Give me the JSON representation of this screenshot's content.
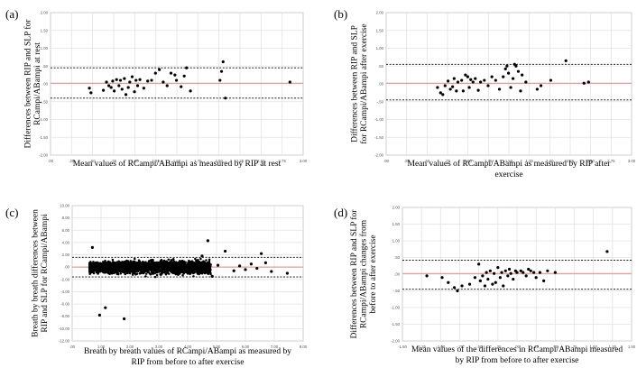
{
  "chart_data": [
    {
      "type": "scatter",
      "panel_label": "(a)",
      "title": "",
      "ylabel": [
        "Differences between RIP and SLP for",
        "RCampi/ABampi at rest"
      ],
      "xlabel": [
        "Mean values of RCampi/ABampi as measured by RIP at rest"
      ],
      "xlim": [
        0,
        3.25
      ],
      "ylim": [
        -2.0,
        2.0
      ],
      "x_ticks": [
        ".00",
        ".25",
        ".50",
        ".75",
        "1.00",
        "1.25",
        "1.50",
        "1.75",
        "2.00",
        "2.25",
        "2.50",
        "2.75",
        "3.00"
      ],
      "y_ticks": [
        "2.00",
        "1.50",
        "1.00",
        ".50",
        ".00",
        "-.50",
        "-1.00",
        "-1.50",
        "-2.00"
      ],
      "mean_line": 0.02,
      "limits_of_agreement": [
        0.45,
        -0.4
      ],
      "grid": true,
      "points": [
        [
          0.5,
          -0.12
        ],
        [
          0.52,
          -0.25
        ],
        [
          0.68,
          -0.18
        ],
        [
          0.72,
          0.05
        ],
        [
          0.75,
          -0.05
        ],
        [
          0.78,
          -0.1
        ],
        [
          0.8,
          0.08
        ],
        [
          0.82,
          -0.2
        ],
        [
          0.85,
          0.12
        ],
        [
          0.88,
          -0.05
        ],
        [
          0.9,
          0.1
        ],
        [
          0.92,
          -0.15
        ],
        [
          0.95,
          0.15
        ],
        [
          0.97,
          -0.3
        ],
        [
          1.0,
          -0.1
        ],
        [
          1.02,
          0.05
        ],
        [
          1.05,
          0.2
        ],
        [
          1.08,
          -0.22
        ],
        [
          1.1,
          0.1
        ],
        [
          1.12,
          -0.05
        ],
        [
          1.15,
          0.12
        ],
        [
          1.2,
          -0.12
        ],
        [
          1.25,
          0.08
        ],
        [
          1.3,
          0.1
        ],
        [
          1.35,
          0.3
        ],
        [
          1.4,
          0.4
        ],
        [
          1.45,
          0.05
        ],
        [
          1.5,
          -0.05
        ],
        [
          1.55,
          0.3
        ],
        [
          1.6,
          0.25
        ],
        [
          1.62,
          0.1
        ],
        [
          1.68,
          -0.08
        ],
        [
          1.72,
          0.22
        ],
        [
          1.75,
          0.45
        ],
        [
          1.8,
          -0.2
        ],
        [
          2.18,
          0.1
        ],
        [
          2.2,
          0.35
        ],
        [
          2.22,
          0.62
        ],
        [
          2.25,
          -0.4
        ],
        [
          3.08,
          0.05
        ]
      ]
    },
    {
      "type": "scatter",
      "panel_label": "(b)",
      "title": "",
      "ylabel": [
        "Differences between RIP and SLP",
        "for RCampi/ABampi after exercise"
      ],
      "xlabel": [
        "Mean values of RCampi/ABampi as measured by RIP after",
        "exercise"
      ],
      "xlim": [
        0,
        3.25
      ],
      "ylim": [
        -2.0,
        2.0
      ],
      "x_ticks": [
        ".00",
        ".25",
        ".50",
        ".75",
        "1.00",
        "1.25",
        "1.50",
        "1.75",
        "2.00",
        "2.25",
        "2.50",
        "2.75",
        "3.00"
      ],
      "y_ticks": [
        "2.00",
        "1.50",
        "1.00",
        ".50",
        ".00",
        "-.50",
        "-1.00",
        "-1.50",
        "-2.00"
      ],
      "mean_line": 0.02,
      "limits_of_agreement": [
        0.55,
        -0.45
      ],
      "grid": true,
      "points": [
        [
          0.68,
          -0.1
        ],
        [
          0.72,
          -0.25
        ],
        [
          0.75,
          -0.3
        ],
        [
          0.78,
          -0.05
        ],
        [
          0.82,
          0.08
        ],
        [
          0.85,
          -0.15
        ],
        [
          0.88,
          -0.08
        ],
        [
          0.9,
          0.15
        ],
        [
          0.93,
          -0.2
        ],
        [
          0.95,
          0.05
        ],
        [
          1.0,
          0.1
        ],
        [
          1.02,
          -0.2
        ],
        [
          1.05,
          0.25
        ],
        [
          1.08,
          0.2
        ],
        [
          1.1,
          -0.1
        ],
        [
          1.12,
          0.12
        ],
        [
          1.15,
          0.05
        ],
        [
          1.18,
          0.15
        ],
        [
          1.22,
          -0.18
        ],
        [
          1.25,
          0.05
        ],
        [
          1.3,
          0.1
        ],
        [
          1.35,
          -0.05
        ],
        [
          1.4,
          0.2
        ],
        [
          1.45,
          0.1
        ],
        [
          1.5,
          -0.15
        ],
        [
          1.55,
          0.2
        ],
        [
          1.58,
          0.42
        ],
        [
          1.6,
          0.5
        ],
        [
          1.62,
          0.3
        ],
        [
          1.65,
          -0.1
        ],
        [
          1.68,
          0.15
        ],
        [
          1.7,
          0.55
        ],
        [
          1.72,
          0.5
        ],
        [
          1.75,
          0.35
        ],
        [
          1.78,
          -0.2
        ],
        [
          1.8,
          0.25
        ],
        [
          1.85,
          0.05
        ],
        [
          2.0,
          -0.15
        ],
        [
          2.05,
          -0.05
        ],
        [
          2.18,
          0.1
        ],
        [
          2.38,
          0.65
        ],
        [
          2.62,
          0.02
        ],
        [
          2.68,
          0.05
        ]
      ]
    },
    {
      "type": "scatter",
      "panel_label": "(c)",
      "title": "",
      "ylabel": [
        "Breath by breath differences between",
        "RIP and SLP for RCampi/ABampi"
      ],
      "xlabel": [
        "Breath by breath values of RCampi/ABampi as measured by",
        "RIP from before to after exercise"
      ],
      "xlim": [
        0,
        8
      ],
      "ylim": [
        -12.0,
        10.0
      ],
      "x_ticks": [
        ".00",
        "1.00",
        "2.00",
        "3.00",
        "4.00",
        "5.00",
        "6.00",
        "7.00",
        "8.00"
      ],
      "y_ticks": [
        "10.00",
        "8.00",
        "6.00",
        "4.00",
        "2.00",
        ".00",
        "-2.00",
        "-4.00",
        "-6.00",
        "-8.00",
        "-10.00",
        "-12.00"
      ],
      "mean_line": 0.0,
      "limits_of_agreement": [
        1.6,
        -1.6
      ],
      "grid": true,
      "points": [
        [
          0.95,
          -7.8
        ],
        [
          1.15,
          -6.6
        ],
        [
          1.8,
          -8.4
        ],
        [
          4.7,
          4.3
        ],
        [
          5.3,
          2.6
        ],
        [
          6.55,
          2.2
        ],
        [
          6.7,
          0.7
        ],
        [
          6.9,
          -0.7
        ],
        [
          7.45,
          -1.0
        ],
        [
          5.8,
          0.2
        ],
        [
          6.0,
          -0.4
        ],
        [
          6.2,
          0.5
        ],
        [
          6.4,
          -0.2
        ],
        [
          5.6,
          -0.6
        ],
        [
          5.05,
          0.3
        ],
        [
          4.85,
          -1.5
        ],
        [
          4.5,
          1.8
        ],
        [
          0.7,
          3.2
        ]
      ]
    },
    {
      "type": "scatter",
      "panel_label": "(d)",
      "title": "",
      "ylabel": [
        "Differences between RIP and SLP for",
        "RCampi/ABampi changes from",
        "before to after exercise"
      ],
      "xlabel": [
        "Mean values of the differences in RCampi/ABampi measured",
        "by RIP from before to after exercise"
      ],
      "xlim": [
        -1.5,
        1.5
      ],
      "ylim": [
        -2.0,
        2.0
      ],
      "x_ticks": [
        "-1.50",
        "-1.25",
        "-1.00",
        "-.75",
        "-.50",
        "-.25",
        ".00",
        ".25",
        ".50",
        ".75",
        "1.00",
        "1.25",
        "1.50"
      ],
      "y_ticks": [
        "2.00",
        "1.50",
        "1.00",
        ".50",
        ".00",
        "-.50",
        "-1.00",
        "-1.50",
        "-2.00"
      ],
      "mean_line": 0.02,
      "limits_of_agreement": [
        0.42,
        -0.45
      ],
      "grid": true,
      "points": [
        [
          -1.18,
          -0.05
        ],
        [
          -0.98,
          -0.1
        ],
        [
          -0.9,
          -0.25
        ],
        [
          -0.82,
          -0.4
        ],
        [
          -0.78,
          -0.5
        ],
        [
          -0.72,
          -0.35
        ],
        [
          -0.62,
          -0.3
        ],
        [
          -0.55,
          -0.1
        ],
        [
          -0.5,
          0.3
        ],
        [
          -0.48,
          -0.2
        ],
        [
          -0.45,
          -0.05
        ],
        [
          -0.42,
          -0.35
        ],
        [
          -0.4,
          0.05
        ],
        [
          -0.38,
          -0.15
        ],
        [
          -0.35,
          0.1
        ],
        [
          -0.32,
          -0.3
        ],
        [
          -0.3,
          0.02
        ],
        [
          -0.28,
          -0.25
        ],
        [
          -0.25,
          0.2
        ],
        [
          -0.22,
          -0.1
        ],
        [
          -0.2,
          0.05
        ],
        [
          -0.18,
          -0.35
        ],
        [
          -0.15,
          0.1
        ],
        [
          -0.12,
          -0.05
        ],
        [
          -0.1,
          0.15
        ],
        [
          -0.08,
          0.02
        ],
        [
          -0.05,
          -0.15
        ],
        [
          -0.02,
          0.1
        ],
        [
          0.0,
          0.05
        ],
        [
          0.05,
          0.1
        ],
        [
          0.08,
          0.05
        ],
        [
          0.12,
          -0.05
        ],
        [
          0.15,
          0.15
        ],
        [
          0.18,
          0.1
        ],
        [
          0.22,
          0.05
        ],
        [
          0.25,
          -0.1
        ],
        [
          0.3,
          0.05
        ],
        [
          0.35,
          -0.2
        ],
        [
          0.4,
          0.1
        ],
        [
          0.5,
          0.05
        ],
        [
          1.18,
          0.68
        ]
      ]
    }
  ],
  "colors": {
    "mean_line": "#d98b8b",
    "loa_line": "#000000",
    "grid": "#e2e2e2",
    "point": "#000000",
    "frame": "#cfcfcf"
  }
}
